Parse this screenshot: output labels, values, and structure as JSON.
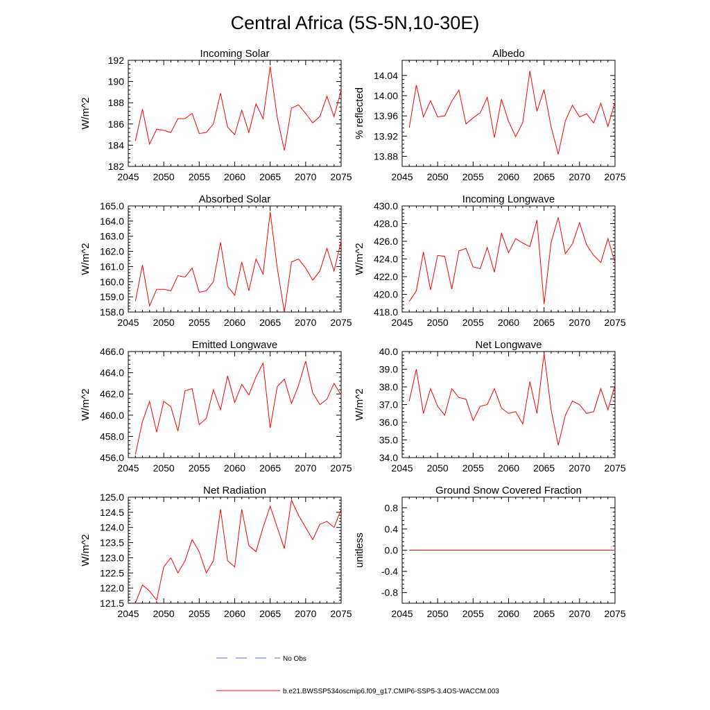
{
  "figure": {
    "title": "Central Africa (5S-5N,10-30E)",
    "series_color": "#ff0000",
    "obs_color": "#4f6fd8"
  },
  "legend": {
    "obs_label": "No Obs",
    "model_label": "b.e21.BWSSP534oscmip6.f09_g17.CMIP6-SSP5-3.4OS-WACCM.003"
  },
  "chart_data": [
    {
      "id": "incoming-solar",
      "type": "line",
      "title": "Incoming Solar",
      "ylabel": "W/m^2",
      "xlim": [
        2045,
        2075
      ],
      "ylim": [
        182,
        192
      ],
      "xticks": [
        2045,
        2050,
        2055,
        2060,
        2065,
        2070,
        2075
      ],
      "yticks": [
        182,
        184,
        186,
        188,
        190,
        192
      ],
      "ydecimals": 0,
      "x": [
        2046,
        2047,
        2048,
        2049,
        2050,
        2051,
        2052,
        2053,
        2054,
        2055,
        2056,
        2057,
        2058,
        2059,
        2060,
        2061,
        2062,
        2063,
        2064,
        2065,
        2066,
        2067,
        2068,
        2069,
        2070,
        2071,
        2072,
        2073,
        2074,
        2075
      ],
      "series": [
        {
          "name": "b.e21.BWSSP534oscmip6.f09_g17.CMIP6-SSP5-3.4OS-WACCM.003",
          "values": [
            184.4,
            187.4,
            184.1,
            185.5,
            185.4,
            185.2,
            186.5,
            186.5,
            187.0,
            185.1,
            185.2,
            186.0,
            188.9,
            185.7,
            185.0,
            187.3,
            185.2,
            187.9,
            186.5,
            191.4,
            186.6,
            183.5,
            187.5,
            187.8,
            187.0,
            186.1,
            186.7,
            188.6,
            186.7,
            189.2
          ]
        }
      ]
    },
    {
      "id": "albedo",
      "type": "line",
      "title": "Albedo",
      "ylabel": "% reflected",
      "xlim": [
        2045,
        2075
      ],
      "ylim": [
        13.86,
        14.07
      ],
      "xticks": [
        2045,
        2050,
        2055,
        2060,
        2065,
        2070,
        2075
      ],
      "yticks": [
        13.88,
        13.92,
        13.96,
        14.0,
        14.04
      ],
      "ydecimals": 2,
      "x": [
        2046,
        2047,
        2048,
        2049,
        2050,
        2051,
        2052,
        2053,
        2054,
        2055,
        2056,
        2057,
        2058,
        2059,
        2060,
        2061,
        2062,
        2063,
        2064,
        2065,
        2066,
        2067,
        2068,
        2069,
        2070,
        2071,
        2072,
        2073,
        2074,
        2075
      ],
      "series": [
        {
          "name": "b.e21.BWSSP534oscmip6.f09_g17.CMIP6-SSP5-3.4OS-WACCM.003",
          "values": [
            13.937,
            14.021,
            13.958,
            13.99,
            13.958,
            13.96,
            13.989,
            14.011,
            13.944,
            13.956,
            13.966,
            13.997,
            13.917,
            13.993,
            13.949,
            13.919,
            13.947,
            14.049,
            13.969,
            14.012,
            13.938,
            13.884,
            13.95,
            13.981,
            13.958,
            13.964,
            13.946,
            13.985,
            13.939,
            13.987
          ]
        }
      ]
    },
    {
      "id": "absorbed-solar",
      "type": "line",
      "title": "Absorbed Solar",
      "ylabel": "W/m^2",
      "xlim": [
        2045,
        2075
      ],
      "ylim": [
        158.0,
        165.0
      ],
      "xticks": [
        2045,
        2050,
        2055,
        2060,
        2065,
        2070,
        2075
      ],
      "yticks": [
        158.0,
        159.0,
        160.0,
        161.0,
        162.0,
        163.0,
        164.0,
        165.0
      ],
      "ydecimals": 1,
      "x": [
        2046,
        2047,
        2048,
        2049,
        2050,
        2051,
        2052,
        2053,
        2054,
        2055,
        2056,
        2057,
        2058,
        2059,
        2060,
        2061,
        2062,
        2063,
        2064,
        2065,
        2066,
        2067,
        2068,
        2069,
        2070,
        2071,
        2072,
        2073,
        2074,
        2075
      ],
      "series": [
        {
          "name": "b.e21.BWSSP534oscmip6.f09_g17.CMIP6-SSP5-3.4OS-WACCM.003",
          "values": [
            158.7,
            161.1,
            158.4,
            159.5,
            159.5,
            159.4,
            160.4,
            160.3,
            160.9,
            159.3,
            159.4,
            160.0,
            162.6,
            159.7,
            159.1,
            161.3,
            159.4,
            161.5,
            160.5,
            164.6,
            160.9,
            158.0,
            161.3,
            161.5,
            160.9,
            160.1,
            160.7,
            162.2,
            160.7,
            162.7
          ]
        }
      ]
    },
    {
      "id": "incoming-longwave",
      "type": "line",
      "title": "Incoming Longwave",
      "ylabel": "W/m^2",
      "xlim": [
        2045,
        2075
      ],
      "ylim": [
        418.0,
        430.0
      ],
      "xticks": [
        2045,
        2050,
        2055,
        2060,
        2065,
        2070,
        2075
      ],
      "yticks": [
        418.0,
        420.0,
        422.0,
        424.0,
        426.0,
        428.0,
        430.0
      ],
      "ydecimals": 1,
      "x": [
        2046,
        2047,
        2048,
        2049,
        2050,
        2051,
        2052,
        2053,
        2054,
        2055,
        2056,
        2057,
        2058,
        2059,
        2060,
        2061,
        2062,
        2063,
        2064,
        2065,
        2066,
        2067,
        2068,
        2069,
        2070,
        2071,
        2072,
        2073,
        2074,
        2075
      ],
      "series": [
        {
          "name": "b.e21.BWSSP534oscmip6.f09_g17.CMIP6-SSP5-3.4OS-WACCM.003",
          "values": [
            419.2,
            420.4,
            424.8,
            420.5,
            424.4,
            424.3,
            420.6,
            424.9,
            425.2,
            423.1,
            422.9,
            425.3,
            422.5,
            426.9,
            424.7,
            426.3,
            425.8,
            425.4,
            428.4,
            418.9,
            425.9,
            428.7,
            424.6,
            425.7,
            428.1,
            425.6,
            424.4,
            423.6,
            426.3,
            423.6
          ]
        }
      ]
    },
    {
      "id": "emitted-longwave",
      "type": "line",
      "title": "Emitted Longwave",
      "ylabel": "W/m^2",
      "xlim": [
        2045,
        2075
      ],
      "ylim": [
        456.0,
        466.0
      ],
      "xticks": [
        2045,
        2050,
        2055,
        2060,
        2065,
        2070,
        2075
      ],
      "yticks": [
        456.0,
        458.0,
        460.0,
        462.0,
        464.0,
        466.0
      ],
      "ydecimals": 1,
      "x": [
        2046,
        2047,
        2048,
        2049,
        2050,
        2051,
        2052,
        2053,
        2054,
        2055,
        2056,
        2057,
        2058,
        2059,
        2060,
        2061,
        2062,
        2063,
        2064,
        2065,
        2066,
        2067,
        2068,
        2069,
        2070,
        2071,
        2072,
        2073,
        2074,
        2075
      ],
      "series": [
        {
          "name": "b.e21.BWSSP534oscmip6.f09_g17.CMIP6-SSP5-3.4OS-WACCM.003",
          "values": [
            456.3,
            459.4,
            461.3,
            458.4,
            461.3,
            460.8,
            458.5,
            462.3,
            462.5,
            459.1,
            459.7,
            462.4,
            460.5,
            463.7,
            461.2,
            462.9,
            461.9,
            463.6,
            464.9,
            458.8,
            462.7,
            463.4,
            461.1,
            462.8,
            465.1,
            462.1,
            461.0,
            461.5,
            463.0,
            461.9
          ]
        }
      ]
    },
    {
      "id": "net-longwave",
      "type": "line",
      "title": "Net Longwave",
      "ylabel": "W/m^2",
      "xlim": [
        2045,
        2075
      ],
      "ylim": [
        34.0,
        40.0
      ],
      "xticks": [
        2045,
        2050,
        2055,
        2060,
        2065,
        2070,
        2075
      ],
      "yticks": [
        34.0,
        35.0,
        36.0,
        37.0,
        38.0,
        39.0,
        40.0
      ],
      "ydecimals": 1,
      "x": [
        2046,
        2047,
        2048,
        2049,
        2050,
        2051,
        2052,
        2053,
        2054,
        2055,
        2056,
        2057,
        2058,
        2059,
        2060,
        2061,
        2062,
        2063,
        2064,
        2065,
        2066,
        2067,
        2068,
        2069,
        2070,
        2071,
        2072,
        2073,
        2074,
        2075
      ],
      "series": [
        {
          "name": "b.e21.BWSSP534oscmip6.f09_g17.CMIP6-SSP5-3.4OS-WACCM.003",
          "values": [
            37.2,
            39.0,
            36.5,
            37.9,
            36.9,
            36.4,
            37.9,
            37.4,
            37.3,
            36.1,
            36.9,
            37.0,
            37.9,
            36.8,
            36.5,
            36.6,
            35.9,
            38.3,
            36.5,
            39.9,
            36.7,
            34.7,
            36.4,
            37.2,
            37.0,
            36.5,
            36.6,
            37.9,
            36.7,
            38.1
          ]
        }
      ]
    },
    {
      "id": "net-radiation",
      "type": "line",
      "title": "Net Radiation",
      "ylabel": "W/m^2",
      "xlim": [
        2045,
        2075
      ],
      "ylim": [
        121.5,
        125.0
      ],
      "xticks": [
        2045,
        2050,
        2055,
        2060,
        2065,
        2070,
        2075
      ],
      "yticks": [
        121.5,
        122.0,
        122.5,
        123.0,
        123.5,
        124.0,
        124.5,
        125.0
      ],
      "ydecimals": 1,
      "x": [
        2046,
        2047,
        2048,
        2049,
        2050,
        2051,
        2052,
        2053,
        2054,
        2055,
        2056,
        2057,
        2058,
        2059,
        2060,
        2061,
        2062,
        2063,
        2064,
        2065,
        2066,
        2067,
        2068,
        2069,
        2070,
        2071,
        2072,
        2073,
        2074,
        2075
      ],
      "series": [
        {
          "name": "b.e21.BWSSP534oscmip6.f09_g17.CMIP6-SSP5-3.4OS-WACCM.003",
          "values": [
            121.5,
            122.1,
            121.9,
            121.6,
            122.7,
            123.0,
            122.5,
            122.9,
            123.6,
            123.2,
            122.5,
            122.9,
            124.6,
            122.9,
            122.7,
            124.6,
            123.4,
            123.2,
            124.0,
            124.7,
            124.0,
            123.3,
            124.9,
            124.4,
            124.0,
            123.6,
            124.1,
            124.2,
            124.0,
            124.6
          ]
        }
      ]
    },
    {
      "id": "ground-snow",
      "type": "line",
      "title": "Ground Snow Covered Fraction",
      "ylabel": "unitless",
      "xlim": [
        2045,
        2075
      ],
      "ylim": [
        -1.0,
        1.0
      ],
      "xticks": [
        2045,
        2050,
        2055,
        2060,
        2065,
        2070,
        2075
      ],
      "yticks": [
        -0.8,
        -0.4,
        0.0,
        0.4,
        0.8
      ],
      "ydecimals": 1,
      "x": [
        2046,
        2047,
        2048,
        2049,
        2050,
        2051,
        2052,
        2053,
        2054,
        2055,
        2056,
        2057,
        2058,
        2059,
        2060,
        2061,
        2062,
        2063,
        2064,
        2065,
        2066,
        2067,
        2068,
        2069,
        2070,
        2071,
        2072,
        2073,
        2074,
        2075
      ],
      "series": [
        {
          "name": "b.e21.BWSSP534oscmip6.f09_g17.CMIP6-SSP5-3.4OS-WACCM.003",
          "values": [
            0,
            0,
            0,
            0,
            0,
            0,
            0,
            0,
            0,
            0,
            0,
            0,
            0,
            0,
            0,
            0,
            0,
            0,
            0,
            0,
            0,
            0,
            0,
            0,
            0,
            0,
            0,
            0,
            0,
            0
          ]
        }
      ]
    }
  ]
}
